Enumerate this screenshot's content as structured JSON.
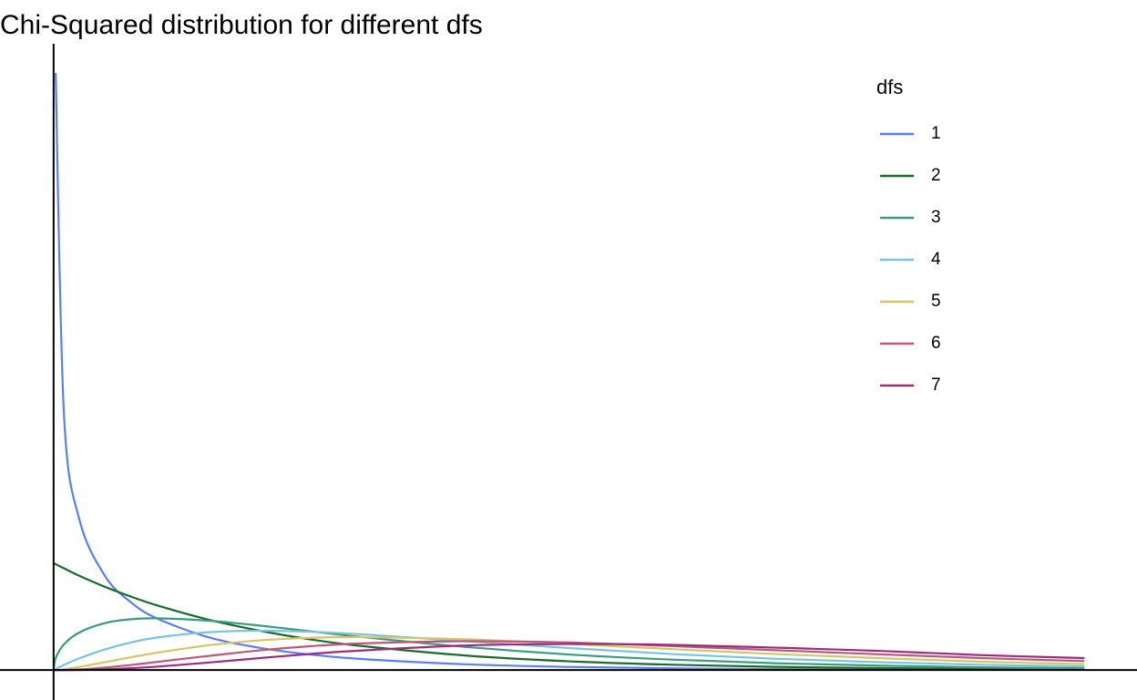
{
  "chart_data": {
    "type": "line",
    "title": "Chi-Squared distribution for different dfs",
    "legend_title": "dfs",
    "legend": "top-right",
    "grid": false,
    "xlim": [
      -0.52,
      10.51
    ],
    "ylim": [
      -0.14,
      2.93
    ],
    "x": [
      0,
      0.02,
      0.1,
      0.25,
      0.5,
      0.75,
      1,
      1.5,
      2,
      2.5,
      3,
      4,
      5,
      6,
      7,
      8,
      9,
      10
    ],
    "series": [
      {
        "name": "1",
        "color": "#5b7ff0",
        "values": [
          null,
          2.793,
          1.2,
          0.704,
          0.439,
          0.317,
          0.242,
          0.154,
          0.104,
          0.0723,
          0.0514,
          0.027,
          0.0146,
          0.0081,
          0.0046,
          0.0026,
          0.0015,
          0.0009
        ]
      },
      {
        "name": "2",
        "color": "#1b6b2c",
        "values": [
          0.5,
          0.495,
          0.476,
          0.441,
          0.389,
          0.344,
          0.303,
          0.236,
          0.184,
          0.143,
          0.112,
          0.068,
          0.041,
          0.025,
          0.015,
          0.0092,
          0.0056,
          0.0034
        ]
      },
      {
        "name": "3",
        "color": "#3a9a82",
        "values": [
          0,
          0.056,
          0.12,
          0.176,
          0.22,
          0.238,
          0.242,
          0.231,
          0.208,
          0.181,
          0.154,
          0.108,
          0.073,
          0.049,
          0.032,
          0.021,
          0.013,
          0.0085
        ]
      },
      {
        "name": "4",
        "color": "#7cc3e0",
        "values": [
          0,
          0.005,
          0.024,
          0.055,
          0.097,
          0.129,
          0.152,
          0.177,
          0.184,
          0.179,
          0.167,
          0.135,
          0.103,
          0.075,
          0.053,
          0.037,
          0.025,
          0.017
        ]
      },
      {
        "name": "5",
        "color": "#d4c46a",
        "values": [
          0,
          0.0004,
          0.004,
          0.015,
          0.037,
          0.06,
          0.081,
          0.116,
          0.139,
          0.151,
          0.154,
          0.144,
          0.122,
          0.098,
          0.075,
          0.056,
          0.039,
          0.028
        ]
      },
      {
        "name": "6",
        "color": "#b85a78",
        "values": [
          0,
          0,
          0.0006,
          0.003,
          0.012,
          0.024,
          0.038,
          0.066,
          0.092,
          0.112,
          0.125,
          0.135,
          0.129,
          0.112,
          0.093,
          0.074,
          0.056,
          0.042
        ]
      },
      {
        "name": "7",
        "color": "#9b2d7f",
        "values": [
          0,
          0,
          0.0001,
          0.0008,
          0.0037,
          0.009,
          0.016,
          0.035,
          0.056,
          0.076,
          0.092,
          0.115,
          0.122,
          0.118,
          0.105,
          0.09,
          0.07,
          0.056
        ]
      }
    ]
  }
}
